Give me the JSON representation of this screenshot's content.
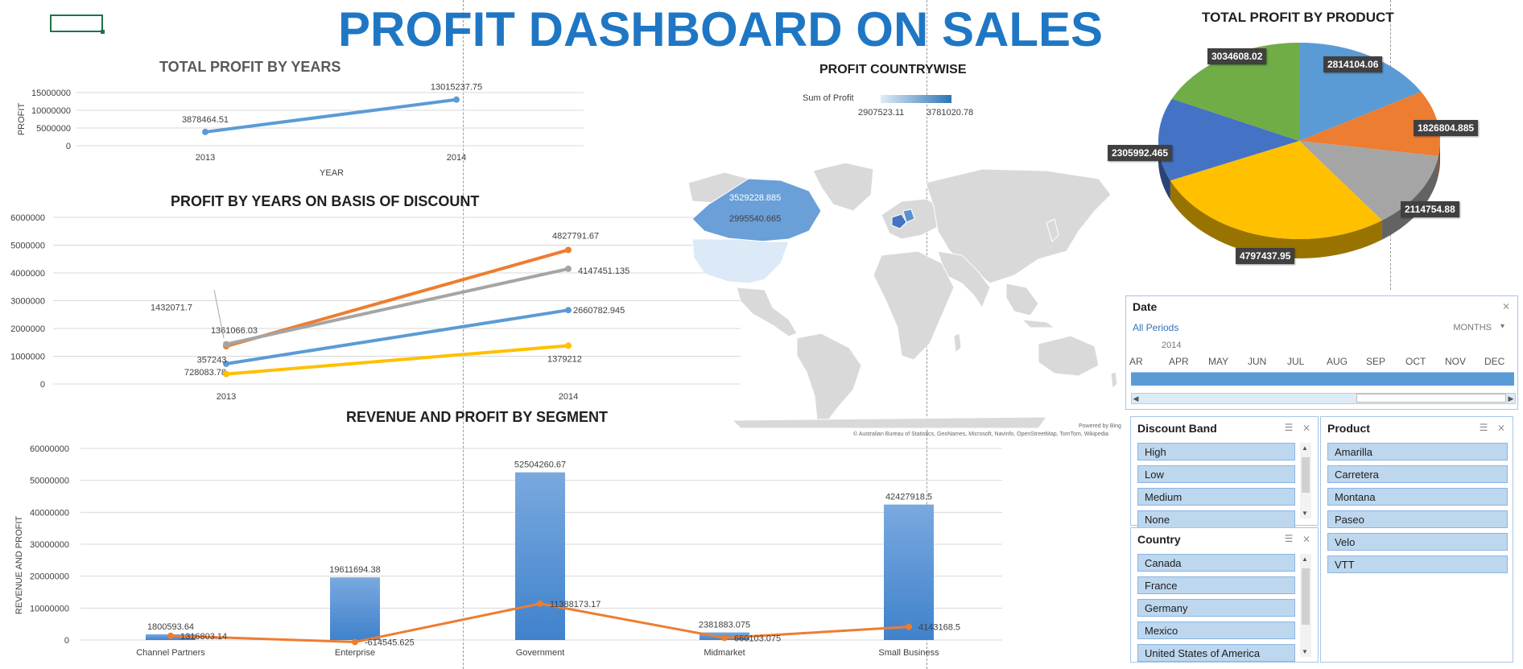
{
  "title": "PROFIT DASHBOARD ON SALES",
  "years_chart": {
    "title": "TOTAL PROFIT BY YEARS"
  },
  "discount_chart": {
    "title": "PROFIT BY YEARS ON BASIS OF DISCOUNT"
  },
  "segment_chart": {
    "title": "REVENUE AND PROFIT BY SEGMENT"
  },
  "map": {
    "title": "PROFIT COUNTRYWISE",
    "legend_label": "Sum of Profit",
    "legend_min": "2907523.11",
    "legend_max": "3781020.78",
    "label_canada": "3529228.885",
    "label_usa": "2995540.665",
    "powered": "Powered by Bing",
    "credits": "© Australian Bureau of Statistics, GeoNames, Microsoft, Navinfo, OpenStreetMap, TomTom, Wikipedia"
  },
  "pie_chart": {
    "title": "TOTAL PROFIT BY PRODUCT"
  },
  "chart_data": [
    {
      "type": "line",
      "title": "TOTAL PROFIT BY YEARS",
      "xlabel": "YEAR",
      "ylabel": "PROFIT",
      "categories": [
        "2013",
        "2014"
      ],
      "values": [
        3878464.51,
        13015237.75
      ],
      "value_labels": [
        "3878464.51",
        "13015237.75"
      ],
      "ylim": [
        0,
        15000000
      ],
      "yticks": [
        "15000000",
        "10000000",
        "5000000",
        "0"
      ],
      "grid": true,
      "color": "#5b9bd5"
    },
    {
      "type": "line",
      "title": "PROFIT BY YEARS ON BASIS OF DISCOUNT",
      "categories": [
        "2013",
        "2014"
      ],
      "ylim": [
        0,
        6000000
      ],
      "yticks": [
        "6000000",
        "5000000",
        "4000000",
        "3000000",
        "2000000",
        "1000000",
        "0"
      ],
      "grid": true,
      "series": [
        {
          "values": [
            1361066.03,
            4827791.67
          ],
          "labels": [
            "1361066.03",
            "4827791.67"
          ],
          "color": "#ed7d31"
        },
        {
          "values": [
            1432071.7,
            4147451.135
          ],
          "labels": [
            "1432071.7",
            "4147451.135"
          ],
          "color": "#a5a5a5"
        },
        {
          "values": [
            728083.78,
            2660782.945
          ],
          "labels": [
            "728083.78",
            "2660782.945"
          ],
          "color": "#5b9bd5"
        },
        {
          "values": [
            357243,
            1379212
          ],
          "labels": [
            "357243",
            "1379212"
          ],
          "color": "#ffc000"
        }
      ]
    },
    {
      "type": "bar",
      "title": "REVENUE AND PROFIT BY SEGMENT",
      "ylabel": "REVENUE AND PROFIT",
      "categories": [
        "Channel Partners",
        "Enterprise",
        "Government",
        "Midmarket",
        "Small Business"
      ],
      "ylim": [
        0,
        60000000
      ],
      "yticks": [
        "60000000",
        "50000000",
        "40000000",
        "30000000",
        "20000000",
        "10000000",
        "0"
      ],
      "grid": true,
      "series": [
        {
          "type": "bar",
          "values": [
            1800593.64,
            19611694.38,
            52504260.67,
            2381883.075,
            42427918.5
          ],
          "labels": [
            "1800593.64",
            "19611694.38",
            "52504260.67",
            "2381883.075",
            "42427918.5"
          ],
          "color": "#5b9bd5"
        },
        {
          "type": "line",
          "values": [
            1316803.14,
            -614545.625,
            11388173.17,
            660103.075,
            4143168.5
          ],
          "labels": [
            "1316803.14",
            "-614545.625",
            "11388173.17",
            "660103.075",
            "4143168.5"
          ],
          "color": "#ed7d31"
        }
      ]
    },
    {
      "type": "pie",
      "title": "TOTAL PROFIT BY PRODUCT",
      "slices": [
        {
          "value": 2814104.06,
          "label": "2814104.06",
          "color": "#5b9bd5"
        },
        {
          "value": 1826804.885,
          "label": "1826804.885",
          "color": "#ed7d31"
        },
        {
          "value": 2114754.88,
          "label": "2114754.88",
          "color": "#a5a5a5"
        },
        {
          "value": 4797437.95,
          "label": "4797437.95",
          "color": "#ffc000"
        },
        {
          "value": 2305992.465,
          "label": "2305992.465",
          "color": "#4472c4"
        },
        {
          "value": 3034608.02,
          "label": "3034608.02",
          "color": "#70ad47"
        }
      ]
    }
  ],
  "date_slicer": {
    "title": "Date",
    "all_periods": "All Periods",
    "level": "MONTHS",
    "year": "2014",
    "months": [
      "AR",
      "APR",
      "MAY",
      "JUN",
      "JUL",
      "AUG",
      "SEP",
      "OCT",
      "NOV",
      "DEC"
    ]
  },
  "discount_slicer": {
    "title": "Discount Band",
    "items": [
      "High",
      "Low",
      "Medium",
      "None"
    ]
  },
  "country_slicer": {
    "title": "Country",
    "items": [
      "Canada",
      "France",
      "Germany",
      "Mexico",
      "United States of America"
    ]
  },
  "product_slicer": {
    "title": "Product",
    "items": [
      "Amarilla",
      "Carretera",
      "Montana",
      "Paseo",
      "Velo",
      "VTT"
    ]
  }
}
